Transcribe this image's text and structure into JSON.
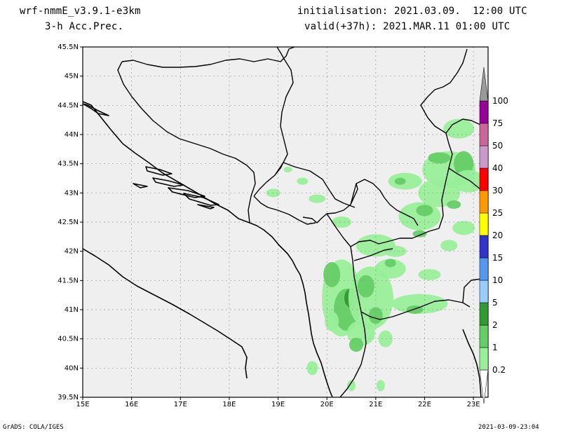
{
  "header": {
    "model": "wrf-nmmE_v3.9.1-e3km",
    "product": "3-h Acc.Prec.",
    "init": "initialisation: 2021.03.09.  12:00 UTC",
    "valid": "valid(+37h): 2021.MAR.11 01:00 UTC"
  },
  "map": {
    "lat_ticks": [
      "45.5N",
      "45N",
      "44.5N",
      "44N",
      "43.5N",
      "43N",
      "42.5N",
      "42N",
      "41.5N",
      "41N",
      "40.5N",
      "40N",
      "39.5N"
    ],
    "lon_ticks": [
      "15E",
      "16E",
      "17E",
      "18E",
      "19E",
      "20E",
      "21E",
      "22E",
      "23E"
    ],
    "lat_range": [
      39.5,
      45.5
    ],
    "lon_range": [
      15,
      23.3
    ],
    "land_color": "#efefef",
    "grid": true
  },
  "legend": {
    "levels": [
      "0.2",
      "1",
      "2",
      "5",
      "10",
      "15",
      "20",
      "25",
      "30",
      "40",
      "50",
      "75",
      "100"
    ],
    "colors": [
      "#ffffff",
      "#99ee99",
      "#66cc66",
      "#339933",
      "#99ccff",
      "#5599ee",
      "#3333cc",
      "#ffff00",
      "#ff9900",
      "#ff0000",
      "#cc99cc",
      "#cc6699",
      "#990099",
      "#999999"
    ]
  },
  "footer": {
    "left": "GrADS: COLA/IGES",
    "right": "2021-03-09-23:04"
  }
}
